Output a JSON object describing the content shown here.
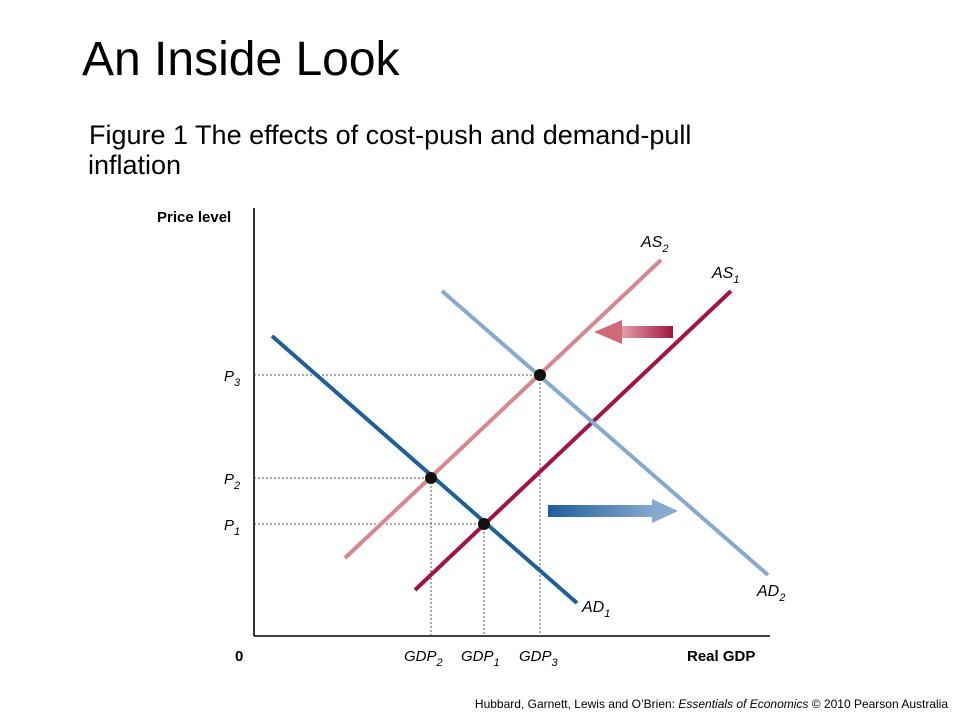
{
  "title": "An Inside Look",
  "subtitle_line1": "Figure 1 The effects of cost-push and demand-pull",
  "subtitle_line2": "inflation",
  "axes": {
    "y_label": "Price level",
    "x_label": "Real GDP",
    "origin": "0"
  },
  "price_ticks": [
    {
      "base": "P",
      "sub": "3"
    },
    {
      "base": "P",
      "sub": "2"
    },
    {
      "base": "P",
      "sub": "1"
    }
  ],
  "gdp_ticks": [
    {
      "base": "GDP",
      "sub": "2"
    },
    {
      "base": "GDP",
      "sub": "1"
    },
    {
      "base": "GDP",
      "sub": "3"
    }
  ],
  "curves": {
    "as2": {
      "base": "AS",
      "sub": "2",
      "color": "#d9878e"
    },
    "as1": {
      "base": "AS",
      "sub": "1",
      "color": "#a31443"
    },
    "ad1": {
      "base": "AD",
      "sub": "1",
      "color": "#1f5f9a"
    },
    "ad2": {
      "base": "AD",
      "sub": "2",
      "color": "#86a9cf"
    }
  },
  "footer": {
    "authors": "Hubbard, Garnett, Lewis and O’Brien: ",
    "book": "Essentials of Economics",
    "rest": " © 2010 Pearson Australia"
  }
}
